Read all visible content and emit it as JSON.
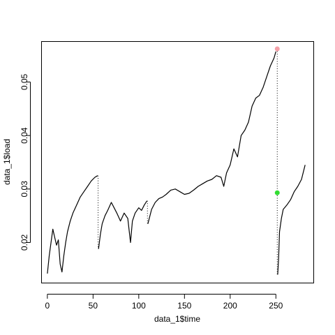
{
  "chart_data": {
    "type": "scatter",
    "title": "",
    "xlabel": "data_1$time",
    "ylabel": "data_1$load",
    "xlim": [
      -6,
      291
    ],
    "ylim": [
      0.0125,
      0.0575
    ],
    "xticks": [
      0,
      50,
      100,
      150,
      200,
      250
    ],
    "yticks": [
      0.02,
      0.03,
      0.04,
      0.05
    ],
    "xtick_labels": [
      "0",
      "50",
      "100",
      "150",
      "200",
      "250"
    ],
    "ytick_labels": [
      "0.02",
      "0.03",
      "0.04",
      "0.05"
    ],
    "grid": false,
    "series": [
      {
        "color": "#000000",
        "segments": [
          {
            "x": [
              0,
              2,
              4,
              6,
              8,
              10,
              12,
              14,
              16,
              18,
              20,
              22,
              25,
              28,
              32,
              36,
              40,
              44,
              48,
              52,
              55
            ],
            "y": [
              0.0142,
              0.0175,
              0.02,
              0.0225,
              0.021,
              0.0195,
              0.0205,
              0.016,
              0.0145,
              0.0175,
              0.02,
              0.022,
              0.024,
              0.0255,
              0.027,
              0.0285,
              0.0295,
              0.0305,
              0.0315,
              0.0322,
              0.0325
            ]
          },
          {
            "x": [
              56,
              58,
              60,
              63,
              66,
              70,
              73,
              76,
              80,
              84,
              88,
              91,
              93,
              96,
              100,
              103,
              106,
              109
            ],
            "y": [
              0.0188,
              0.0215,
              0.0235,
              0.025,
              0.026,
              0.0275,
              0.0265,
              0.0255,
              0.024,
              0.0255,
              0.0245,
              0.02,
              0.024,
              0.0255,
              0.0265,
              0.026,
              0.027,
              0.0278
            ]
          },
          {
            "x": [
              110,
              114,
              118,
              122,
              126,
              130,
              135,
              140,
              145,
              150,
              155,
              160,
              165,
              170,
              175,
              180,
              185,
              190,
              193,
              196,
              200,
              204,
              208,
              212,
              216,
              220,
              224,
              228,
              232,
              236,
              240,
              244,
              248,
              250
            ],
            "y": [
              0.0235,
              0.0262,
              0.0275,
              0.0282,
              0.0285,
              0.029,
              0.0298,
              0.03,
              0.0295,
              0.029,
              0.0292,
              0.0298,
              0.0305,
              0.031,
              0.0315,
              0.0318,
              0.0325,
              0.0322,
              0.0305,
              0.033,
              0.0345,
              0.0375,
              0.036,
              0.04,
              0.041,
              0.0425,
              0.0455,
              0.047,
              0.0475,
              0.049,
              0.051,
              0.053,
              0.0545,
              0.0557
            ]
          },
          {
            "x": [
              252,
              253,
              254,
              256,
              258,
              262,
              266,
              270,
              274,
              278,
              282
            ],
            "y": [
              0.014,
              0.017,
              0.022,
              0.0245,
              0.0262,
              0.027,
              0.028,
              0.0295,
              0.0305,
              0.0318,
              0.0345
            ]
          }
        ]
      }
    ],
    "vertical_drops": [
      {
        "x": 55.5,
        "y_from": 0.0325,
        "y_to": 0.0188
      },
      {
        "x": 109.5,
        "y_from": 0.0278,
        "y_to": 0.0235
      },
      {
        "x": 251.5,
        "y_from": 0.0562,
        "y_to": 0.014
      }
    ],
    "highlight_points": [
      {
        "x": 251.5,
        "y": 0.0562,
        "color": "#F4A0A8"
      },
      {
        "x": 251.5,
        "y": 0.0293,
        "color": "#33DD33"
      }
    ]
  }
}
